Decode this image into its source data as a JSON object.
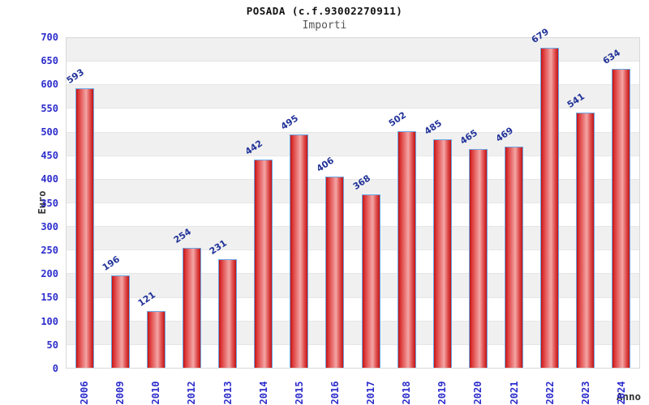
{
  "chart_data": {
    "type": "bar",
    "title": "POSADA (c.f.93002270911)",
    "subtitle": "Importi",
    "xlabel": "Anno",
    "ylabel": "Euro",
    "categories": [
      "2006",
      "2009",
      "2010",
      "2012",
      "2013",
      "2014",
      "2015",
      "2016",
      "2017",
      "2018",
      "2019",
      "2020",
      "2021",
      "2022",
      "2023",
      "2024"
    ],
    "values": [
      593,
      196,
      121,
      254,
      231,
      442,
      495,
      406,
      368,
      502,
      485,
      465,
      469,
      679,
      541,
      634
    ],
    "ylim": [
      0,
      700
    ],
    "yticks": [
      0,
      50,
      100,
      150,
      200,
      250,
      300,
      350,
      400,
      450,
      500,
      550,
      600,
      650,
      700
    ],
    "grid": "alternating-horizontal-bands",
    "legend_position": "none",
    "value_labels_shown": true
  },
  "colors": {
    "bar_edge": "#c21414",
    "bar_center": "#f4a6a6",
    "bar_border": "#6ba7e5",
    "tick_label": "#2d2dcc",
    "value_label": "#223399",
    "axis_title": "#333333",
    "subtitle": "#555555",
    "band_gray": "#f0f0f0",
    "band_white": "#ffffff",
    "plot_border": "#d8d8d8"
  }
}
